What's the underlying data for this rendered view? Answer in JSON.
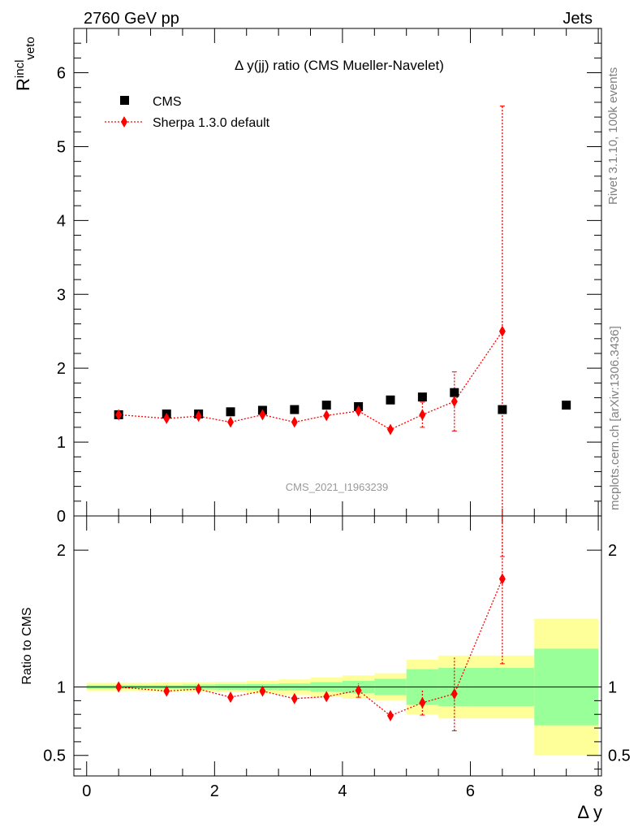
{
  "header": {
    "left": "2760 GeV pp",
    "right": "Jets"
  },
  "side": {
    "rivet": "Rivet 3.1.10,  100k events",
    "mcplots": "mcplots.cern.ch [arXiv:1306.3436]"
  },
  "chart_data": {
    "type": "scatter",
    "title": "Δ y(jj) ratio (CMS Mueller-Navelet)",
    "watermark": "CMS_2021_I1963239",
    "ylabel_main": "R^incl_veto",
    "ylabel_ratio": "Ratio to CMS",
    "xlabel": "Δ y",
    "legend": [
      "CMS",
      "Sherpa 1.3.0 default"
    ],
    "legend_position": "top-left",
    "xlim": [
      -0.2,
      8.05
    ],
    "ylim_main": [
      0,
      6.6
    ],
    "ylim_ratio": [
      0.35,
      2.25
    ],
    "x_ticks": [
      0,
      2,
      4,
      6,
      8
    ],
    "y_ticks_main": [
      0,
      1,
      2,
      3,
      4,
      5,
      6
    ],
    "y_ticks_ratio": [
      0.5,
      1,
      2
    ],
    "colors": {
      "data": "#000000",
      "mc": "#ff0000",
      "band_inner": "#99ff99",
      "band_outer": "#ffff99"
    },
    "data": {
      "name": "CMS",
      "x": [
        0.5,
        1.25,
        1.75,
        2.25,
        2.75,
        3.25,
        3.75,
        4.25,
        4.75,
        5.25,
        5.75,
        6.5,
        7.5
      ],
      "xlow": [
        0,
        1.0,
        1.5,
        2.0,
        2.5,
        3.0,
        3.5,
        4.0,
        4.5,
        5.0,
        5.5,
        6.0,
        7.0
      ],
      "xhigh": [
        1.0,
        1.5,
        2.0,
        2.5,
        3.0,
        3.5,
        4.0,
        4.5,
        5.0,
        5.5,
        6.0,
        7.0,
        8.0
      ],
      "y": [
        1.37,
        1.38,
        1.38,
        1.41,
        1.43,
        1.44,
        1.5,
        1.48,
        1.57,
        1.61,
        1.67,
        1.44,
        1.5
      ],
      "rel_err_inner": [
        0.015,
        0.015,
        0.018,
        0.02,
        0.022,
        0.025,
        0.035,
        0.045,
        0.06,
        0.13,
        0.14,
        0.14,
        0.28
      ],
      "rel_err_outer": [
        0.03,
        0.032,
        0.035,
        0.038,
        0.045,
        0.055,
        0.07,
        0.085,
        0.1,
        0.2,
        0.23,
        0.23,
        0.5
      ]
    },
    "mc": {
      "name": "Sherpa 1.3.0 default",
      "x": [
        0.5,
        1.25,
        1.75,
        2.25,
        2.75,
        3.25,
        3.75,
        4.25,
        4.75,
        5.25,
        5.75,
        6.5
      ],
      "y": [
        1.37,
        1.32,
        1.35,
        1.27,
        1.37,
        1.27,
        1.36,
        1.42,
        1.17,
        1.37,
        1.55,
        2.5
      ],
      "err": [
        0.02,
        0.02,
        0.02,
        0.02,
        0.02,
        0.02,
        0.02,
        0.06,
        0.04,
        0.17,
        0.4,
        3.05
      ],
      "ratio": [
        1.0,
        0.97,
        0.985,
        0.925,
        0.97,
        0.915,
        0.93,
        0.975,
        0.79,
        0.885,
        0.95,
        1.79
      ],
      "ratio_err": [
        0.01,
        0.01,
        0.01,
        0.01,
        0.01,
        0.01,
        0.01,
        0.05,
        0.02,
        0.09,
        0.27,
        0.62
      ]
    }
  }
}
